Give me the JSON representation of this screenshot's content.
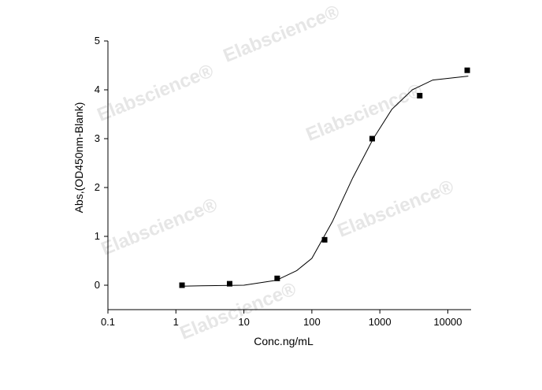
{
  "chart_data": {
    "type": "scatter",
    "x_label": "Conc.ng/mL",
    "y_label": "Abs,(OD450nm-Blank)",
    "watermark": "Elabscience®",
    "xscale": "log",
    "xlim": [
      0.1,
      22000
    ],
    "ylim": [
      -0.5,
      5
    ],
    "xticks": [
      0.1,
      1,
      10,
      100,
      1000,
      10000
    ],
    "yticks": [
      0,
      1,
      2,
      3,
      4,
      5
    ],
    "points": {
      "color": "#000000",
      "x": [
        1.23,
        6.17,
        30.9,
        154,
        772,
        3860,
        19300
      ],
      "y": [
        0.0,
        0.03,
        0.14,
        0.93,
        3.0,
        3.88,
        4.4
      ]
    },
    "fit": {
      "color": "#000000",
      "x": [
        1.2,
        3,
        10,
        30,
        60,
        100,
        200,
        400,
        800,
        1500,
        3000,
        6000,
        20000
      ],
      "y": [
        -0.02,
        -0.01,
        0.0,
        0.1,
        0.3,
        0.55,
        1.3,
        2.2,
        3.0,
        3.6,
        4.0,
        4.2,
        4.28
      ]
    }
  }
}
